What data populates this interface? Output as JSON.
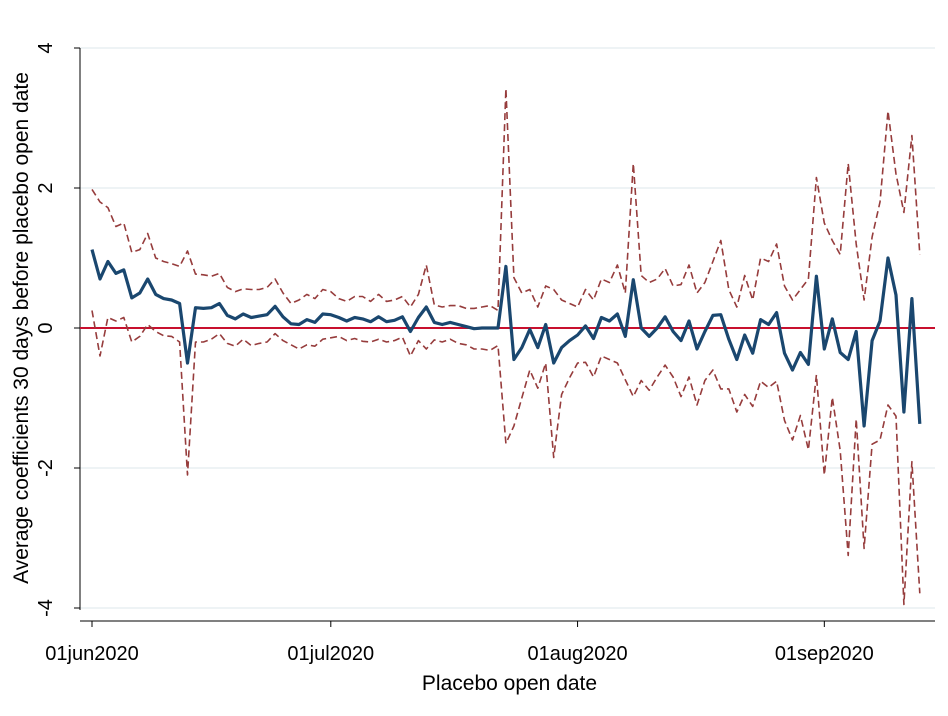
{
  "chart_data": {
    "type": "line",
    "title": "",
    "xlabel": "Placebo open date",
    "ylabel": "Average coefficients 30 days before placebo open date",
    "x_start": "2020-06-01",
    "xlim": [
      "2020-06-01",
      "2020-09-12"
    ],
    "ylim": [
      -4,
      4
    ],
    "x_ticks": [
      {
        "date": "2020-06-01",
        "label": "01jun2020"
      },
      {
        "date": "2020-07-01",
        "label": "01jul2020"
      },
      {
        "date": "2020-08-01",
        "label": "01aug2020"
      },
      {
        "date": "2020-09-01",
        "label": "01sep2020"
      }
    ],
    "y_ticks": [
      {
        "value": -4,
        "label": "-4"
      },
      {
        "value": -2,
        "label": "-2"
      },
      {
        "value": 0,
        "label": "0"
      },
      {
        "value": 2,
        "label": "2"
      },
      {
        "value": 4,
        "label": "4"
      }
    ],
    "grid": {
      "horizontal": true,
      "vertical": false
    },
    "reference_line": {
      "y": 0,
      "color": "#c8102e"
    },
    "series": [
      {
        "role": "estimate",
        "style": "solid",
        "color": "#1a476f",
        "values": [
          1.12,
          0.7,
          0.95,
          0.78,
          0.83,
          0.43,
          0.5,
          0.7,
          0.48,
          0.42,
          0.4,
          0.35,
          -0.5,
          0.29,
          0.28,
          0.29,
          0.35,
          0.18,
          0.13,
          0.2,
          0.15,
          0.17,
          0.19,
          0.31,
          0.16,
          0.06,
          0.05,
          0.12,
          0.08,
          0.2,
          0.19,
          0.15,
          0.1,
          0.15,
          0.13,
          0.09,
          0.16,
          0.09,
          0.11,
          0.16,
          -0.05,
          0.15,
          0.3,
          0.08,
          0.05,
          0.08,
          0.05,
          0.02,
          -0.01,
          0.0,
          0.0,
          0.0,
          0.88,
          -0.45,
          -0.28,
          -0.02,
          -0.28,
          0.05,
          -0.5,
          -0.28,
          -0.18,
          -0.1,
          0.03,
          -0.15,
          0.15,
          0.1,
          0.2,
          -0.12,
          0.69,
          0.0,
          -0.12,
          0.0,
          0.16,
          -0.05,
          -0.18,
          0.1,
          -0.3,
          -0.05,
          0.18,
          0.19,
          -0.16,
          -0.45,
          -0.1,
          -0.36,
          0.12,
          0.05,
          0.22,
          -0.36,
          -0.6,
          -0.35,
          -0.52,
          0.74,
          -0.3,
          0.13,
          -0.35,
          -0.45,
          -0.05,
          -1.4,
          -0.18,
          0.1,
          1.0,
          0.47,
          -1.2,
          0.42,
          -1.37
        ]
      },
      {
        "role": "upper-ci",
        "style": "dashed",
        "color": "#963c3c",
        "values": [
          1.98,
          1.8,
          1.72,
          1.45,
          1.5,
          1.08,
          1.12,
          1.35,
          1.0,
          0.95,
          0.92,
          0.88,
          1.1,
          0.77,
          0.76,
          0.74,
          0.78,
          0.58,
          0.52,
          0.56,
          0.55,
          0.55,
          0.58,
          0.7,
          0.5,
          0.35,
          0.4,
          0.48,
          0.42,
          0.55,
          0.52,
          0.42,
          0.38,
          0.45,
          0.45,
          0.38,
          0.48,
          0.38,
          0.4,
          0.45,
          0.3,
          0.48,
          0.9,
          0.33,
          0.3,
          0.32,
          0.32,
          0.28,
          0.28,
          0.3,
          0.32,
          0.25,
          3.42,
          0.72,
          0.5,
          0.55,
          0.3,
          0.6,
          0.55,
          0.4,
          0.35,
          0.3,
          0.55,
          0.4,
          0.7,
          0.65,
          0.9,
          0.5,
          2.35,
          0.75,
          0.65,
          0.7,
          0.85,
          0.6,
          0.62,
          0.9,
          0.5,
          0.65,
          0.95,
          1.25,
          0.55,
          0.3,
          0.75,
          0.4,
          1.0,
          0.95,
          1.2,
          0.6,
          0.4,
          0.55,
          0.7,
          2.15,
          1.5,
          1.25,
          1.05,
          2.35,
          1.2,
          0.4,
          1.3,
          1.8,
          3.1,
          2.2,
          1.65,
          2.75,
          1.05
        ]
      },
      {
        "role": "lower-ci",
        "style": "dashed",
        "color": "#963c3c",
        "values": [
          0.25,
          -0.4,
          0.15,
          0.1,
          0.15,
          -0.2,
          -0.12,
          0.05,
          -0.05,
          -0.11,
          -0.12,
          -0.2,
          -2.1,
          -0.2,
          -0.2,
          -0.16,
          -0.08,
          -0.22,
          -0.26,
          -0.16,
          -0.25,
          -0.22,
          -0.2,
          -0.08,
          -0.18,
          -0.24,
          -0.3,
          -0.24,
          -0.26,
          -0.16,
          -0.14,
          -0.12,
          -0.18,
          -0.15,
          -0.19,
          -0.2,
          -0.16,
          -0.2,
          -0.18,
          -0.13,
          -0.4,
          -0.18,
          -0.3,
          -0.17,
          -0.2,
          -0.16,
          -0.22,
          -0.24,
          -0.3,
          -0.3,
          -0.32,
          -0.25,
          -1.65,
          -1.4,
          -1.0,
          -0.6,
          -0.86,
          -0.5,
          -1.85,
          -0.95,
          -0.71,
          -0.5,
          -0.49,
          -0.7,
          -0.4,
          -0.45,
          -0.5,
          -0.74,
          -0.98,
          -0.75,
          -0.89,
          -0.7,
          -0.53,
          -0.7,
          -0.98,
          -0.7,
          -1.1,
          -0.75,
          -0.6,
          -0.87,
          -0.87,
          -1.2,
          -0.95,
          -1.12,
          -0.76,
          -0.85,
          -0.76,
          -1.32,
          -1.6,
          -1.25,
          -1.74,
          -0.67,
          -2.1,
          -0.99,
          -1.75,
          -3.25,
          -1.3,
          -3.15,
          -1.66,
          -1.6,
          -1.1,
          -1.26,
          -3.95,
          -1.91,
          -3.79
        ]
      }
    ]
  }
}
